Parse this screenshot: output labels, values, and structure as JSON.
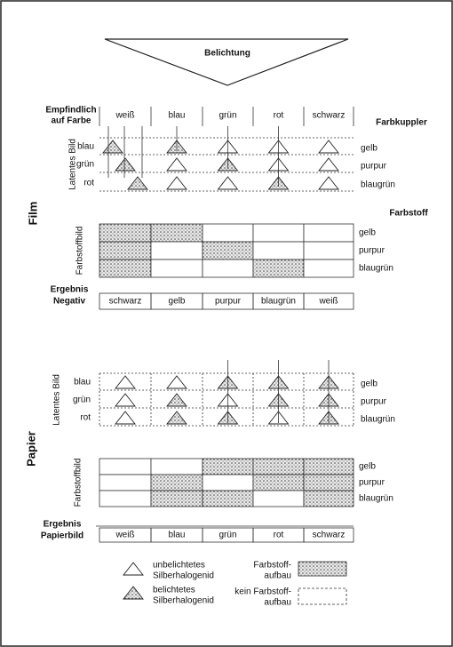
{
  "exposure": "Belichtung",
  "film": {
    "label": "Film",
    "sensitivity": [
      "Empfindlich",
      "auf Farbe"
    ],
    "columns": [
      "weiß",
      "blau",
      "grün",
      "rot",
      "schwarz"
    ],
    "coupler_heading": "Farbkuppler",
    "latent_label": "Latentes Bild",
    "layers": [
      "blau",
      "grün",
      "rot"
    ],
    "couplers": [
      "gelb",
      "purpur",
      "blaugrün"
    ],
    "dye_heading": "Farbstoff",
    "dye_label": "Farbstoffbild",
    "dyes": [
      "gelb",
      "purpur",
      "blaugrün"
    ],
    "result_label": [
      "Ergebnis",
      "Negativ"
    ],
    "result": [
      "schwarz",
      "gelb",
      "purpur",
      "blaugrün",
      "weiß"
    ]
  },
  "paper": {
    "label": "Papier",
    "latent_label": "Latentes Bild",
    "layers": [
      "blau",
      "grün",
      "rot"
    ],
    "couplers": [
      "gelb",
      "purpur",
      "blaugrün"
    ],
    "dye_label": "Farbstoffbild",
    "dyes": [
      "gelb",
      "purpur",
      "blaugrün"
    ],
    "result_label": [
      "Ergebnis",
      "Papierbild"
    ],
    "result": [
      "weiß",
      "blau",
      "grün",
      "rot",
      "schwarz"
    ]
  },
  "legend": {
    "unexposed": [
      "unbelichtetes",
      "Silberhalogenid"
    ],
    "exposed": [
      "belichtetes",
      "Silberhalogenid"
    ],
    "dye": [
      "Farbstoff-",
      "aufbau"
    ],
    "no_dye": [
      "kein Farbstoff-",
      "aufbau"
    ]
  }
}
